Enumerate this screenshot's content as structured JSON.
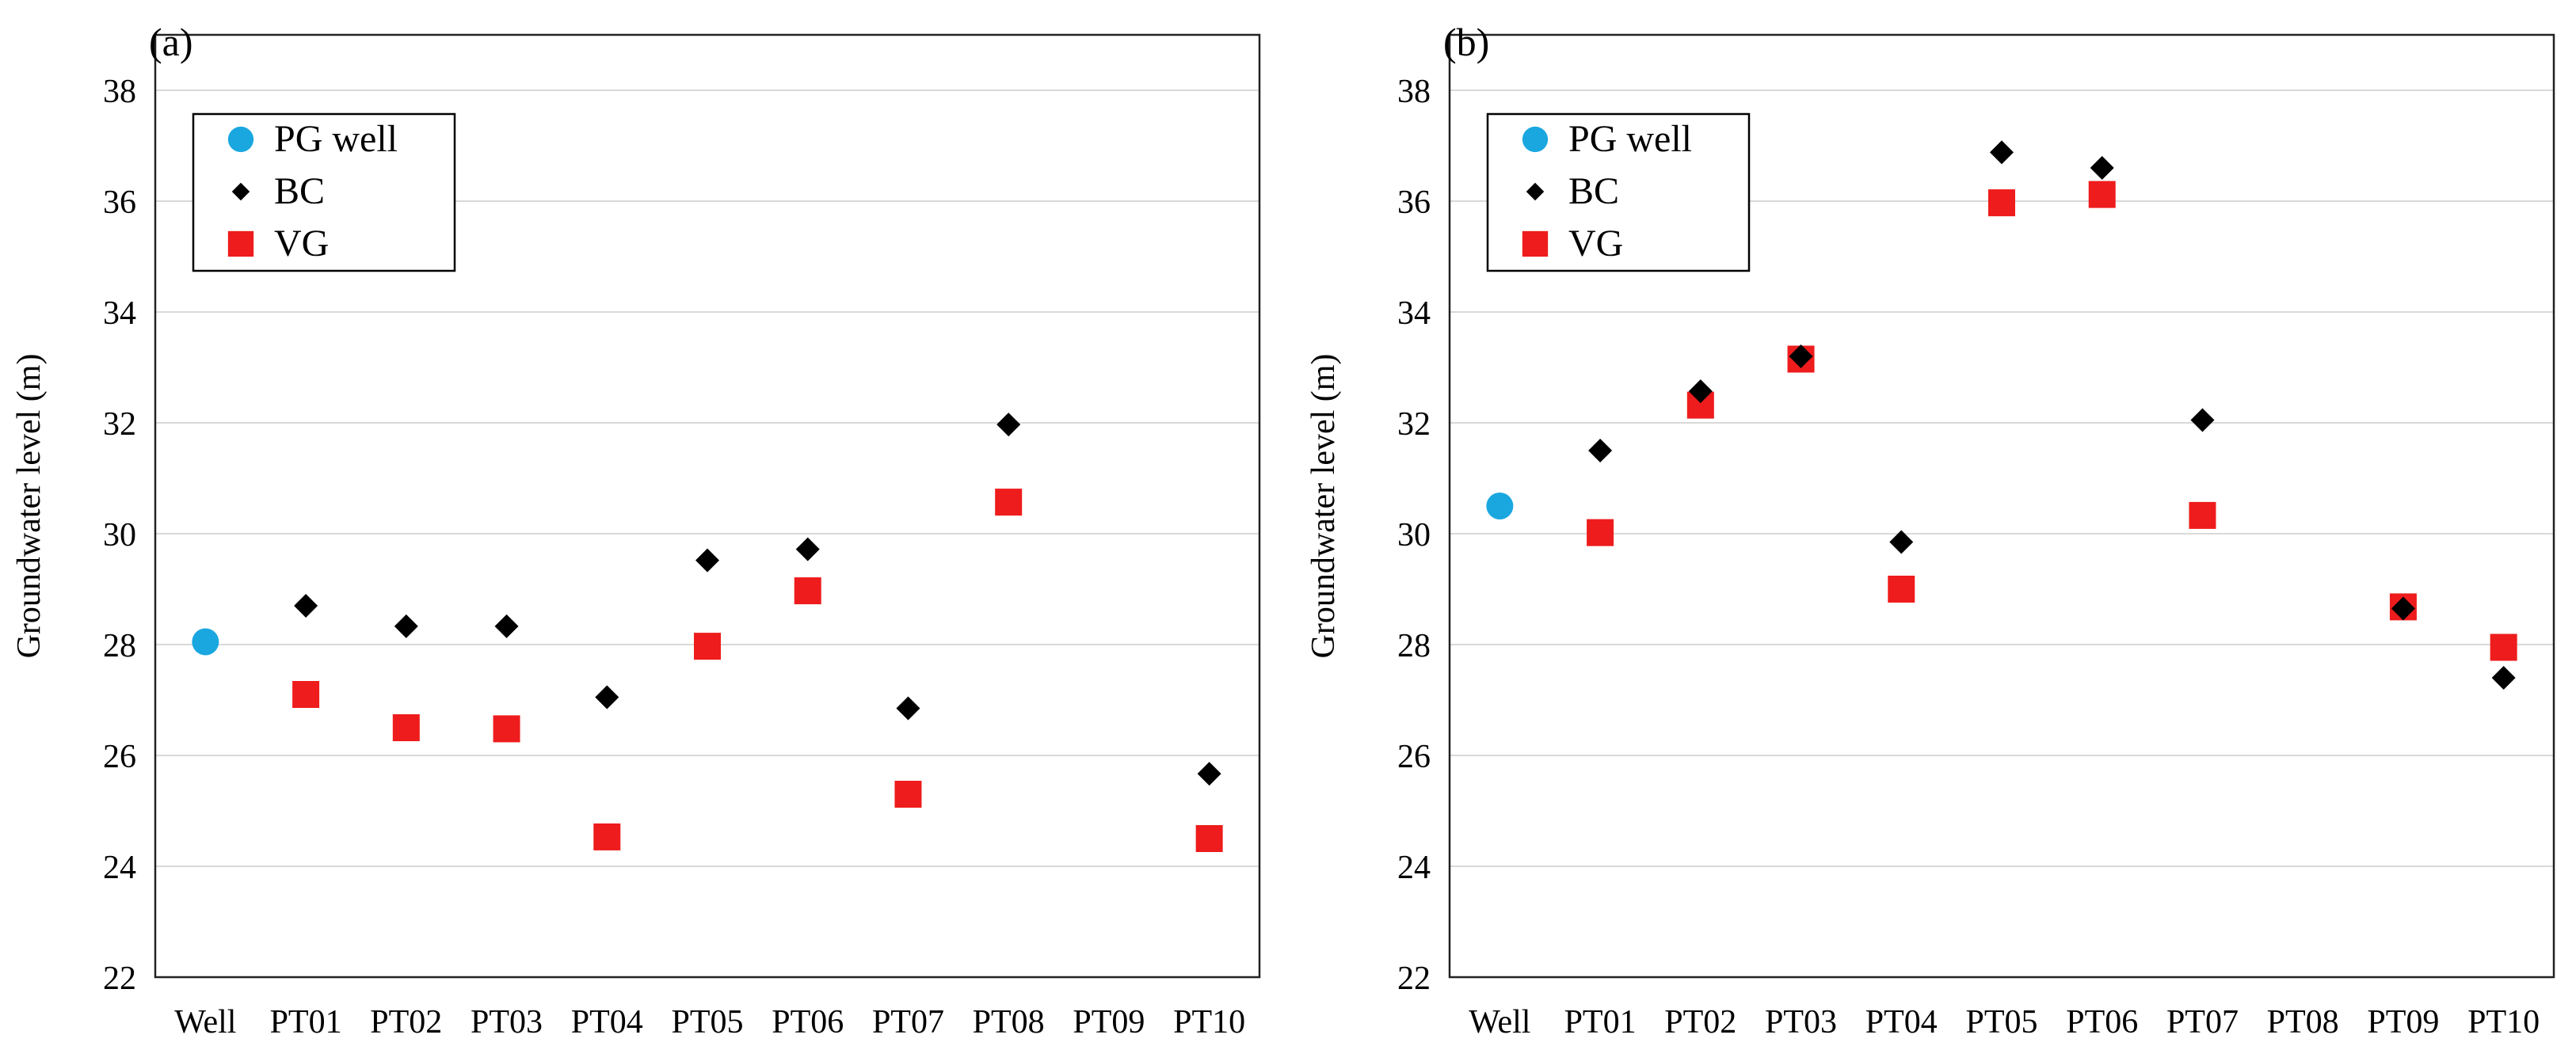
{
  "colors": {
    "pg_well": "#1aa7e0",
    "bc": "#000000",
    "vg": "#ee1c1c",
    "grid": "#d9d9d9",
    "frame": "#222222"
  },
  "chart_data": [
    {
      "type": "scatter",
      "panel_label": "(a)",
      "ylabel": "Groundwater level (m)",
      "xlabel": "",
      "ylim": [
        22,
        39
      ],
      "yticks": [
        22,
        24,
        26,
        28,
        30,
        32,
        34,
        36,
        38
      ],
      "grid": true,
      "legend_position": "top-left",
      "categories": [
        "Well",
        "PT01",
        "PT02",
        "PT03",
        "PT04",
        "PT05",
        "PT06",
        "PT07",
        "PT08",
        "PT09",
        "PT10"
      ],
      "series": [
        {
          "name": "PG well",
          "marker": "circle",
          "values": [
            28.05,
            null,
            null,
            null,
            null,
            null,
            null,
            null,
            null,
            null,
            null
          ]
        },
        {
          "name": "BC",
          "marker": "diamond",
          "values": [
            null,
            28.7,
            28.33,
            28.33,
            27.05,
            29.52,
            29.72,
            26.85,
            31.97,
            null,
            25.67
          ]
        },
        {
          "name": "VG",
          "marker": "square",
          "values": [
            null,
            27.1,
            26.5,
            26.48,
            24.53,
            27.97,
            28.97,
            25.3,
            30.57,
            null,
            24.5
          ]
        }
      ]
    },
    {
      "type": "scatter",
      "panel_label": "(b)",
      "ylabel": "Groundwater level (m)",
      "xlabel": "",
      "ylim": [
        22,
        39
      ],
      "yticks": [
        22,
        24,
        26,
        28,
        30,
        32,
        34,
        36,
        38
      ],
      "grid": true,
      "legend_position": "top-left",
      "categories": [
        "Well",
        "PT01",
        "PT02",
        "PT03",
        "PT04",
        "PT05",
        "PT06",
        "PT07",
        "PT08",
        "PT09",
        "PT10"
      ],
      "series": [
        {
          "name": "PG well",
          "marker": "circle",
          "values": [
            30.5,
            null,
            null,
            null,
            null,
            null,
            null,
            null,
            null,
            null,
            null
          ]
        },
        {
          "name": "BC",
          "marker": "diamond",
          "values": [
            null,
            31.5,
            32.57,
            33.2,
            29.85,
            36.88,
            36.6,
            32.05,
            null,
            28.65,
            27.4
          ]
        },
        {
          "name": "VG",
          "marker": "square",
          "values": [
            null,
            30.02,
            32.32,
            33.15,
            29.0,
            35.97,
            36.12,
            30.33,
            null,
            28.68,
            27.95
          ]
        }
      ]
    }
  ]
}
